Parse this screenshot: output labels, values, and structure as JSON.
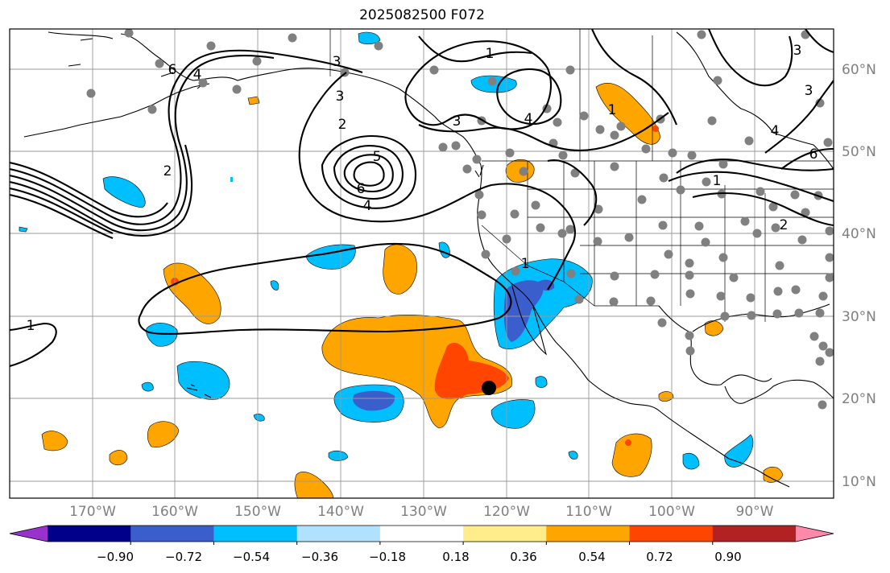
{
  "title": "2025082500 F072",
  "colors": {
    "land_outline": "#000000",
    "grid": "#808080",
    "contour": "#000000",
    "station_dot": "#808080",
    "marker": "#000000"
  },
  "latitude_labels": [
    "60°N",
    "50°N",
    "40°N",
    "30°N",
    "20°N",
    "10°N"
  ],
  "longitude_labels": [
    "170°W",
    "160°W",
    "150°W",
    "140°W",
    "130°W",
    "120°W",
    "110°W",
    "100°W",
    "90°W"
  ],
  "contour_labels": [
    "1",
    "2",
    "3",
    "4",
    "5",
    "6",
    "3",
    "4",
    "1",
    "3",
    "2",
    "4",
    "1",
    "6",
    "3",
    "4",
    "2",
    "1",
    "6",
    "3",
    "1"
  ],
  "colorbar": {
    "tick_labels": [
      "−0.90",
      "−0.72",
      "−0.54",
      "−0.36",
      "−0.18",
      "0.18",
      "0.36",
      "0.54",
      "0.72",
      "0.90"
    ],
    "colors": [
      "#9932cc",
      "#00008b",
      "#3a5fcd",
      "#00bfff",
      "#b0e2ff",
      "#ffffff",
      "#ffec8b",
      "#ffa500",
      "#ff4500",
      "#b22222",
      "#ff89a9"
    ]
  }
}
